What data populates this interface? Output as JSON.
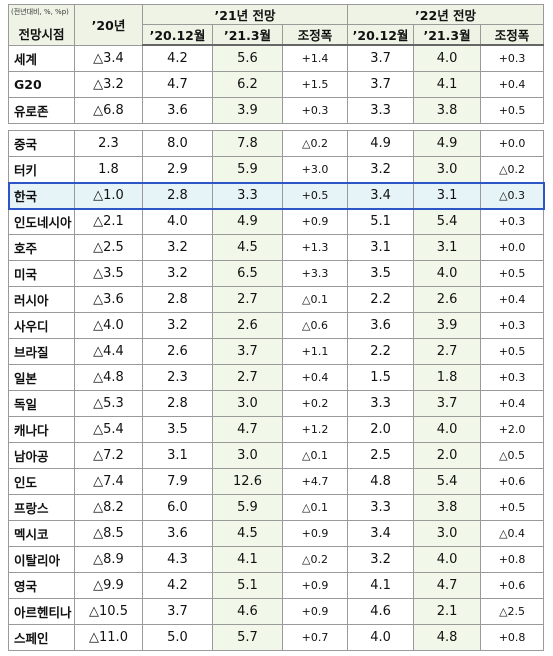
{
  "unit": "(전년대비, %, %p)",
  "header": {
    "region": "전망시점",
    "y20": "’20년",
    "y21": "’21년 전망",
    "y22": "’22년 전망",
    "sub": [
      "’20.12월",
      "’21.3월",
      "조정폭",
      "’20.12월",
      "’21.3월",
      "조정폭"
    ]
  },
  "groups": [
    {
      "rows": [
        [
          "세계",
          "△3.4",
          "4.2",
          "5.6",
          "+1.4",
          "3.7",
          "4.0",
          "+0.3"
        ],
        [
          "G20",
          "△3.2",
          "4.7",
          "6.2",
          "+1.5",
          "3.7",
          "4.1",
          "+0.4"
        ],
        [
          "유로존",
          "△6.8",
          "3.6",
          "3.9",
          "+0.3",
          "3.3",
          "3.8",
          "+0.5"
        ]
      ]
    },
    {
      "rows": [
        [
          "중국",
          "2.3",
          "8.0",
          "7.8",
          "△0.2",
          "4.9",
          "4.9",
          "+0.0"
        ],
        [
          "터키",
          "1.8",
          "2.9",
          "5.9",
          "+3.0",
          "3.2",
          "3.0",
          "△0.2"
        ],
        [
          "한국",
          "△1.0",
          "2.8",
          "3.3",
          "+0.5",
          "3.4",
          "3.1",
          "△0.3"
        ],
        [
          "인도네시아",
          "△2.1",
          "4.0",
          "4.9",
          "+0.9",
          "5.1",
          "5.4",
          "+0.3"
        ],
        [
          "호주",
          "△2.5",
          "3.2",
          "4.5",
          "+1.3",
          "3.1",
          "3.1",
          "+0.0"
        ],
        [
          "미국",
          "△3.5",
          "3.2",
          "6.5",
          "+3.3",
          "3.5",
          "4.0",
          "+0.5"
        ],
        [
          "러시아",
          "△3.6",
          "2.8",
          "2.7",
          "△0.1",
          "2.2",
          "2.6",
          "+0.4"
        ],
        [
          "사우디",
          "△4.0",
          "3.2",
          "2.6",
          "△0.6",
          "3.6",
          "3.9",
          "+0.3"
        ],
        [
          "브라질",
          "△4.4",
          "2.6",
          "3.7",
          "+1.1",
          "2.2",
          "2.7",
          "+0.5"
        ],
        [
          "일본",
          "△4.8",
          "2.3",
          "2.7",
          "+0.4",
          "1.5",
          "1.8",
          "+0.3"
        ],
        [
          "독일",
          "△5.3",
          "2.8",
          "3.0",
          "+0.2",
          "3.3",
          "3.7",
          "+0.4"
        ],
        [
          "캐나다",
          "△5.4",
          "3.5",
          "4.7",
          "+1.2",
          "2.0",
          "4.0",
          "+2.0"
        ],
        [
          "남아공",
          "△7.2",
          "3.1",
          "3.0",
          "△0.1",
          "2.5",
          "2.0",
          "△0.5"
        ],
        [
          "인도",
          "△7.4",
          "7.9",
          "12.6",
          "+4.7",
          "4.8",
          "5.4",
          "+0.6"
        ],
        [
          "프랑스",
          "△8.2",
          "6.0",
          "5.9",
          "△0.1",
          "3.3",
          "3.8",
          "+0.5"
        ],
        [
          "멕시코",
          "△8.5",
          "3.6",
          "4.5",
          "+0.9",
          "3.4",
          "3.0",
          "△0.4"
        ],
        [
          "이탈리아",
          "△8.9",
          "4.3",
          "4.1",
          "△0.2",
          "3.2",
          "4.0",
          "+0.8"
        ],
        [
          "영국",
          "△9.9",
          "4.2",
          "5.1",
          "+0.9",
          "4.1",
          "4.7",
          "+0.6"
        ],
        [
          "아르헨티나",
          "△10.5",
          "3.7",
          "4.6",
          "+0.9",
          "4.6",
          "2.1",
          "△2.5"
        ],
        [
          "스페인",
          "△11.0",
          "5.0",
          "5.7",
          "+0.7",
          "4.0",
          "4.8",
          "+0.8"
        ]
      ]
    }
  ]
}
